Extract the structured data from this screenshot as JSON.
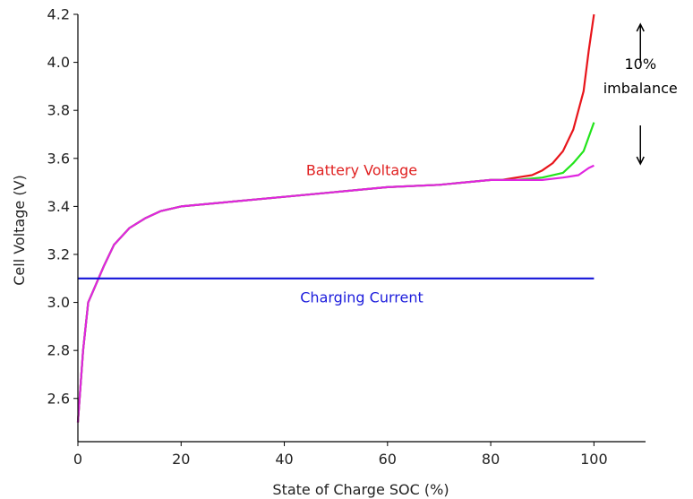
{
  "chart_data": {
    "type": "line",
    "title": "",
    "xlabel": "State of Charge SOC (%)",
    "ylabel": "Cell Voltage (V)",
    "xlim": [
      0,
      110
    ],
    "ylim": [
      2.42,
      4.2
    ],
    "xticks": [
      0,
      20,
      40,
      60,
      80,
      100
    ],
    "xtick_labels": [
      "0",
      "20",
      "40",
      "60",
      "80",
      "100"
    ],
    "yticks": [
      2.6,
      2.8,
      3.0,
      3.2,
      3.4,
      3.6,
      3.8,
      4.0,
      4.2
    ],
    "ytick_labels": [
      "2.6",
      "2.8",
      "3.0",
      "3.2",
      "3.4",
      "3.6",
      "3.8",
      "4.0",
      "4.2"
    ],
    "grid": false,
    "series": [
      {
        "color": "#e8151b",
        "x": [
          0,
          1,
          2,
          3,
          5,
          7,
          10,
          13,
          16,
          20,
          30,
          40,
          50,
          60,
          70,
          80,
          82,
          85,
          88,
          90,
          92,
          94,
          96,
          98,
          99,
          100
        ],
        "y": [
          2.5,
          2.8,
          3.0,
          3.05,
          3.15,
          3.24,
          3.31,
          3.35,
          3.38,
          3.4,
          3.42,
          3.44,
          3.46,
          3.48,
          3.49,
          3.51,
          3.51,
          3.52,
          3.53,
          3.55,
          3.58,
          3.63,
          3.72,
          3.88,
          4.05,
          4.2
        ]
      },
      {
        "color": "#22e41b",
        "x": [
          0,
          1,
          2,
          3,
          5,
          7,
          10,
          13,
          16,
          20,
          30,
          40,
          50,
          60,
          70,
          80,
          85,
          90,
          94,
          96,
          98,
          99,
          100
        ],
        "y": [
          2.5,
          2.8,
          3.0,
          3.05,
          3.15,
          3.24,
          3.31,
          3.35,
          3.38,
          3.4,
          3.42,
          3.44,
          3.46,
          3.48,
          3.49,
          3.51,
          3.51,
          3.52,
          3.54,
          3.58,
          3.63,
          3.69,
          3.75
        ]
      },
      {
        "color": "#e025e0",
        "x": [
          0,
          1,
          2,
          3,
          5,
          7,
          10,
          13,
          16,
          20,
          30,
          40,
          50,
          60,
          70,
          80,
          85,
          90,
          94,
          97,
          99,
          100
        ],
        "y": [
          2.5,
          2.8,
          3.0,
          3.05,
          3.15,
          3.24,
          3.31,
          3.35,
          3.38,
          3.4,
          3.42,
          3.44,
          3.46,
          3.48,
          3.49,
          3.51,
          3.51,
          3.51,
          3.52,
          3.53,
          3.56,
          3.57
        ]
      },
      {
        "color": "#1414d8",
        "x": [
          0,
          100
        ],
        "y": [
          3.1,
          3.1
        ]
      }
    ],
    "annotations": [
      {
        "text": "Battery Voltage",
        "x": 55,
        "y": 3.53,
        "color": "#e02020"
      },
      {
        "text": "Charging Current",
        "x": 55,
        "y": 3.0,
        "color": "#1c1cdc"
      },
      {
        "text_lines": [
          "10%",
          "imbalance"
        ],
        "x": 109,
        "y": 3.88,
        "color": "#000000"
      }
    ]
  }
}
